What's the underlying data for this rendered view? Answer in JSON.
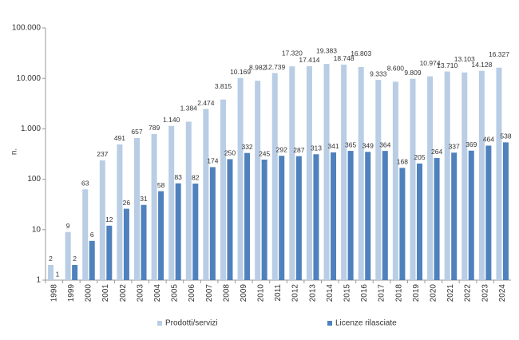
{
  "chart_data": {
    "type": "bar",
    "ylabel": "n.",
    "log_scale": true,
    "grid": false,
    "legend": "bottom",
    "categories": [
      "1998",
      "1999",
      "2000",
      "2001",
      "2002",
      "2003",
      "2004",
      "2005",
      "2006",
      "2007",
      "2008",
      "2009",
      "2010",
      "2011",
      "2012",
      "2013",
      "2014",
      "2015",
      "2016",
      "2017",
      "2018",
      "2019",
      "2020",
      "2021",
      "2022",
      "2023",
      "2024"
    ],
    "series": [
      {
        "name": "Prodotti/servizi",
        "color": "#b9cde5",
        "values": [
          2,
          9,
          63,
          237,
          491,
          657,
          789,
          1140,
          1384,
          2474,
          3815,
          10169,
          8982,
          12739,
          17320,
          17414,
          19383,
          18748,
          16803,
          9333,
          8600,
          9809,
          10974,
          13710,
          13103,
          14128,
          16327
        ],
        "value_labels": [
          "2",
          "9",
          "63",
          "237",
          "491",
          "657",
          "789",
          "1.140",
          "1.384",
          "2.474",
          "3.815",
          "10.169",
          "8.982",
          "12.739",
          "17.320",
          "17.414",
          "19.383",
          "18.748",
          "16.803",
          "9.333",
          "8.600",
          "9.809",
          "10.974",
          "13.710",
          "13.103",
          "14.128",
          "16.327"
        ]
      },
      {
        "name": "Licenze rilasciate",
        "color": "#4f81bd",
        "values": [
          1,
          2,
          6,
          12,
          26,
          31,
          58,
          83,
          82,
          174,
          250,
          332,
          245,
          292,
          287,
          313,
          341,
          365,
          349,
          364,
          168,
          205,
          264,
          337,
          369,
          464,
          538
        ],
        "value_labels": [
          "1",
          "2",
          "6",
          "12",
          "26",
          "31",
          "58",
          "83",
          "82",
          "174",
          "250",
          "332",
          "245",
          "292",
          "287",
          "313",
          "341",
          "365",
          "349",
          "364",
          "168",
          "205",
          "264",
          "337",
          "369",
          "464",
          "538"
        ]
      }
    ],
    "ylim": [
      1,
      100000
    ],
    "yticks": [
      1,
      10,
      100,
      {
        "value": 1000,
        "label": "1.000"
      },
      {
        "value": 10000,
        "label": "10.000"
      },
      {
        "value": 100000,
        "label": "100.000"
      }
    ]
  }
}
